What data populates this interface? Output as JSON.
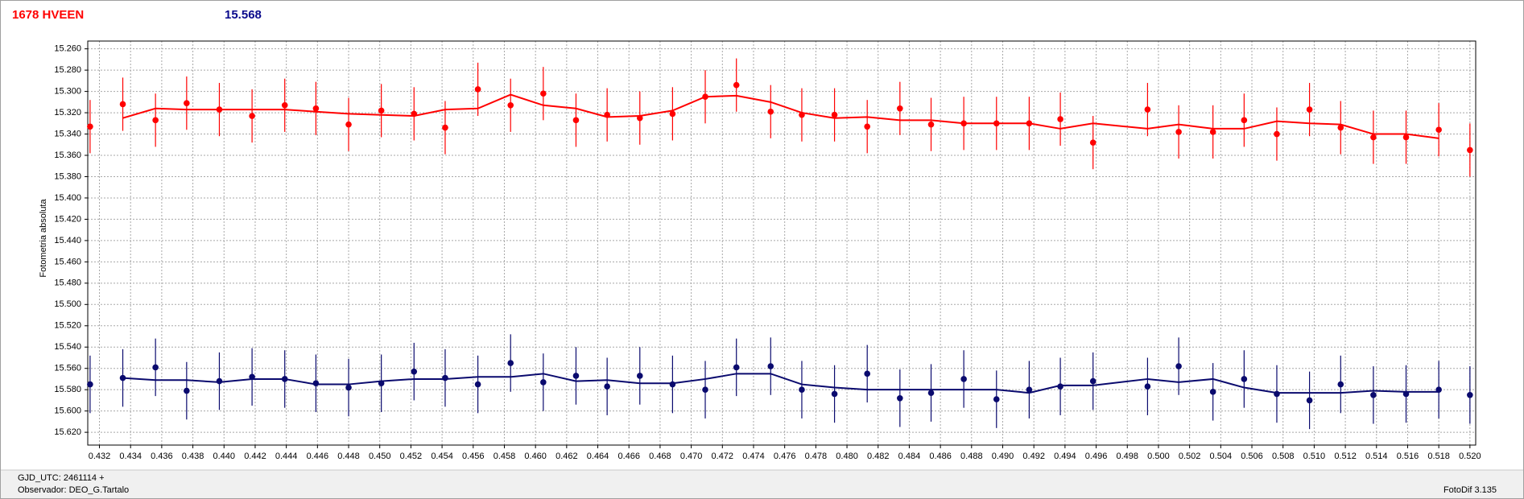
{
  "chart_data": {
    "type": "scatter",
    "title": "1678 HVEEN",
    "subtitle": "15.568",
    "y_label": "Fotometria absoluta",
    "x": [
      0.4314,
      0.4335,
      0.4356,
      0.4376,
      0.4397,
      0.4418,
      0.4439,
      0.4459,
      0.448,
      0.4501,
      0.4522,
      0.4542,
      0.4563,
      0.4584,
      0.4605,
      0.4626,
      0.4646,
      0.4667,
      0.4688,
      0.4709,
      0.4729,
      0.4751,
      0.4771,
      0.4792,
      0.4813,
      0.4834,
      0.4854,
      0.4875,
      0.4896,
      0.4917,
      0.4937,
      0.4958,
      0.4993,
      0.5013,
      0.5035,
      0.5055,
      0.5076,
      0.5097,
      0.5117,
      0.5138,
      0.5159,
      0.518,
      0.52
    ],
    "series": [
      {
        "color": "#ff0000",
        "values": [
          15.333,
          15.312,
          15.327,
          15.311,
          15.317,
          15.323,
          15.313,
          15.316,
          15.331,
          15.318,
          15.321,
          15.334,
          15.298,
          15.313,
          15.302,
          15.327,
          15.322,
          15.325,
          15.321,
          15.305,
          15.294,
          15.319,
          15.322,
          15.322,
          15.333,
          15.316,
          15.331,
          15.33,
          15.33,
          15.33,
          15.326,
          15.348,
          15.317,
          15.338,
          15.338,
          15.327,
          15.34,
          15.317,
          15.334,
          15.343,
          15.343,
          15.336,
          15.355
        ],
        "errors": [
          0.025,
          0.025,
          0.025,
          0.025,
          0.025,
          0.025,
          0.025,
          0.025,
          0.025,
          0.025,
          0.025,
          0.025,
          0.025,
          0.025,
          0.025,
          0.025,
          0.025,
          0.025,
          0.025,
          0.025,
          0.025,
          0.025,
          0.025,
          0.025,
          0.025,
          0.025,
          0.025,
          0.025,
          0.025,
          0.025,
          0.025,
          0.025,
          0.025,
          0.025,
          0.025,
          0.025,
          0.025,
          0.025,
          0.025,
          0.025,
          0.025,
          0.025,
          0.025
        ],
        "trend": [
          null,
          15.325,
          15.316,
          15.317,
          15.317,
          15.317,
          15.317,
          15.319,
          15.321,
          15.322,
          15.323,
          15.317,
          15.316,
          15.303,
          15.313,
          15.316,
          15.324,
          15.323,
          15.318,
          15.305,
          15.304,
          15.31,
          15.32,
          15.325,
          15.324,
          15.327,
          15.327,
          15.33,
          15.33,
          15.33,
          15.335,
          15.33,
          15.335,
          15.331,
          15.335,
          15.335,
          15.328,
          15.33,
          15.331,
          15.34,
          15.34,
          15.344,
          null
        ]
      },
      {
        "color": "#0a0a6e",
        "values": [
          15.575,
          15.569,
          15.559,
          15.581,
          15.572,
          15.568,
          15.57,
          15.574,
          15.578,
          15.574,
          15.563,
          15.569,
          15.575,
          15.555,
          15.573,
          15.567,
          15.577,
          15.567,
          15.575,
          15.58,
          15.559,
          15.558,
          15.58,
          15.584,
          15.565,
          15.588,
          15.583,
          15.57,
          15.589,
          15.58,
          15.577,
          15.572,
          15.577,
          15.558,
          15.582,
          15.57,
          15.584,
          15.59,
          15.575,
          15.585,
          15.584,
          15.58,
          15.585
        ],
        "errors": [
          0.027,
          0.027,
          0.027,
          0.027,
          0.027,
          0.027,
          0.027,
          0.027,
          0.027,
          0.027,
          0.027,
          0.027,
          0.027,
          0.027,
          0.027,
          0.027,
          0.027,
          0.027,
          0.027,
          0.027,
          0.027,
          0.027,
          0.027,
          0.027,
          0.027,
          0.027,
          0.027,
          0.027,
          0.027,
          0.027,
          0.027,
          0.027,
          0.027,
          0.027,
          0.027,
          0.027,
          0.027,
          0.027,
          0.027,
          0.027,
          0.027,
          0.027,
          0.027
        ],
        "trend": [
          null,
          15.569,
          15.571,
          15.571,
          15.573,
          15.57,
          15.57,
          15.575,
          15.575,
          15.572,
          15.57,
          15.57,
          15.568,
          15.568,
          15.565,
          15.572,
          15.571,
          15.574,
          15.574,
          15.57,
          15.565,
          15.565,
          15.575,
          15.578,
          15.58,
          15.58,
          15.58,
          15.58,
          15.58,
          15.583,
          15.576,
          15.576,
          15.57,
          15.573,
          15.57,
          15.578,
          15.583,
          15.583,
          15.583,
          15.581,
          15.582,
          15.582,
          null
        ]
      }
    ],
    "xlim": [
      0.43125,
      0.52037
    ],
    "ylim": [
      15.632,
      15.2527
    ],
    "xticks": [
      0.432,
      0.434,
      0.436,
      0.438,
      {
        "value": 0.44,
        "label": "0.440"
      },
      0.442,
      0.444,
      0.446,
      0.448,
      {
        "value": 0.45,
        "label": "0.450"
      },
      0.452,
      0.454,
      0.456,
      0.458,
      {
        "value": 0.46,
        "label": "0.460"
      },
      0.462,
      0.464,
      0.466,
      0.468,
      {
        "value": 0.47,
        "label": "0.470"
      },
      0.472,
      0.474,
      0.476,
      0.478,
      {
        "value": 0.48,
        "label": "0.480"
      },
      0.482,
      0.484,
      0.486,
      0.488,
      {
        "value": 0.49,
        "label": "0.490"
      },
      0.492,
      0.494,
      0.496,
      0.498,
      {
        "value": 0.5,
        "label": "0.500"
      },
      0.502,
      0.504,
      0.506,
      0.508,
      {
        "value": 0.51,
        "label": "0.510"
      },
      0.512,
      0.514,
      0.516,
      0.518,
      {
        "value": 0.52,
        "label": "0.520"
      }
    ],
    "yticks": [
      {
        "value": 15.26,
        "label": "15.260"
      },
      {
        "value": 15.28,
        "label": "15.280"
      },
      {
        "value": 15.3,
        "label": "15.300"
      },
      {
        "value": 15.32,
        "label": "15.320"
      },
      {
        "value": 15.34,
        "label": "15.340"
      },
      {
        "value": 15.36,
        "label": "15.360"
      },
      {
        "value": 15.38,
        "label": "15.380"
      },
      {
        "value": 15.4,
        "label": "15.400"
      },
      {
        "value": 15.42,
        "label": "15.420"
      },
      {
        "value": 15.44,
        "label": "15.440"
      },
      {
        "value": 15.46,
        "label": "15.460"
      },
      {
        "value": 15.48,
        "label": "15.480"
      },
      {
        "value": 15.5,
        "label": "15.500"
      },
      {
        "value": 15.52,
        "label": "15.520"
      },
      {
        "value": 15.54,
        "label": "15.540"
      },
      {
        "value": 15.56,
        "label": "15.560"
      },
      {
        "value": 15.58,
        "label": "15.580"
      },
      {
        "value": 15.6,
        "label": "15.600"
      },
      {
        "value": 15.62,
        "label": "15.620"
      }
    ],
    "grid": true
  },
  "status_bar": {
    "date": "GJD_UTC: 2461114 +",
    "observer": "Observador: DEO_G.Tartalo",
    "version": "FotoDif 3.135"
  }
}
